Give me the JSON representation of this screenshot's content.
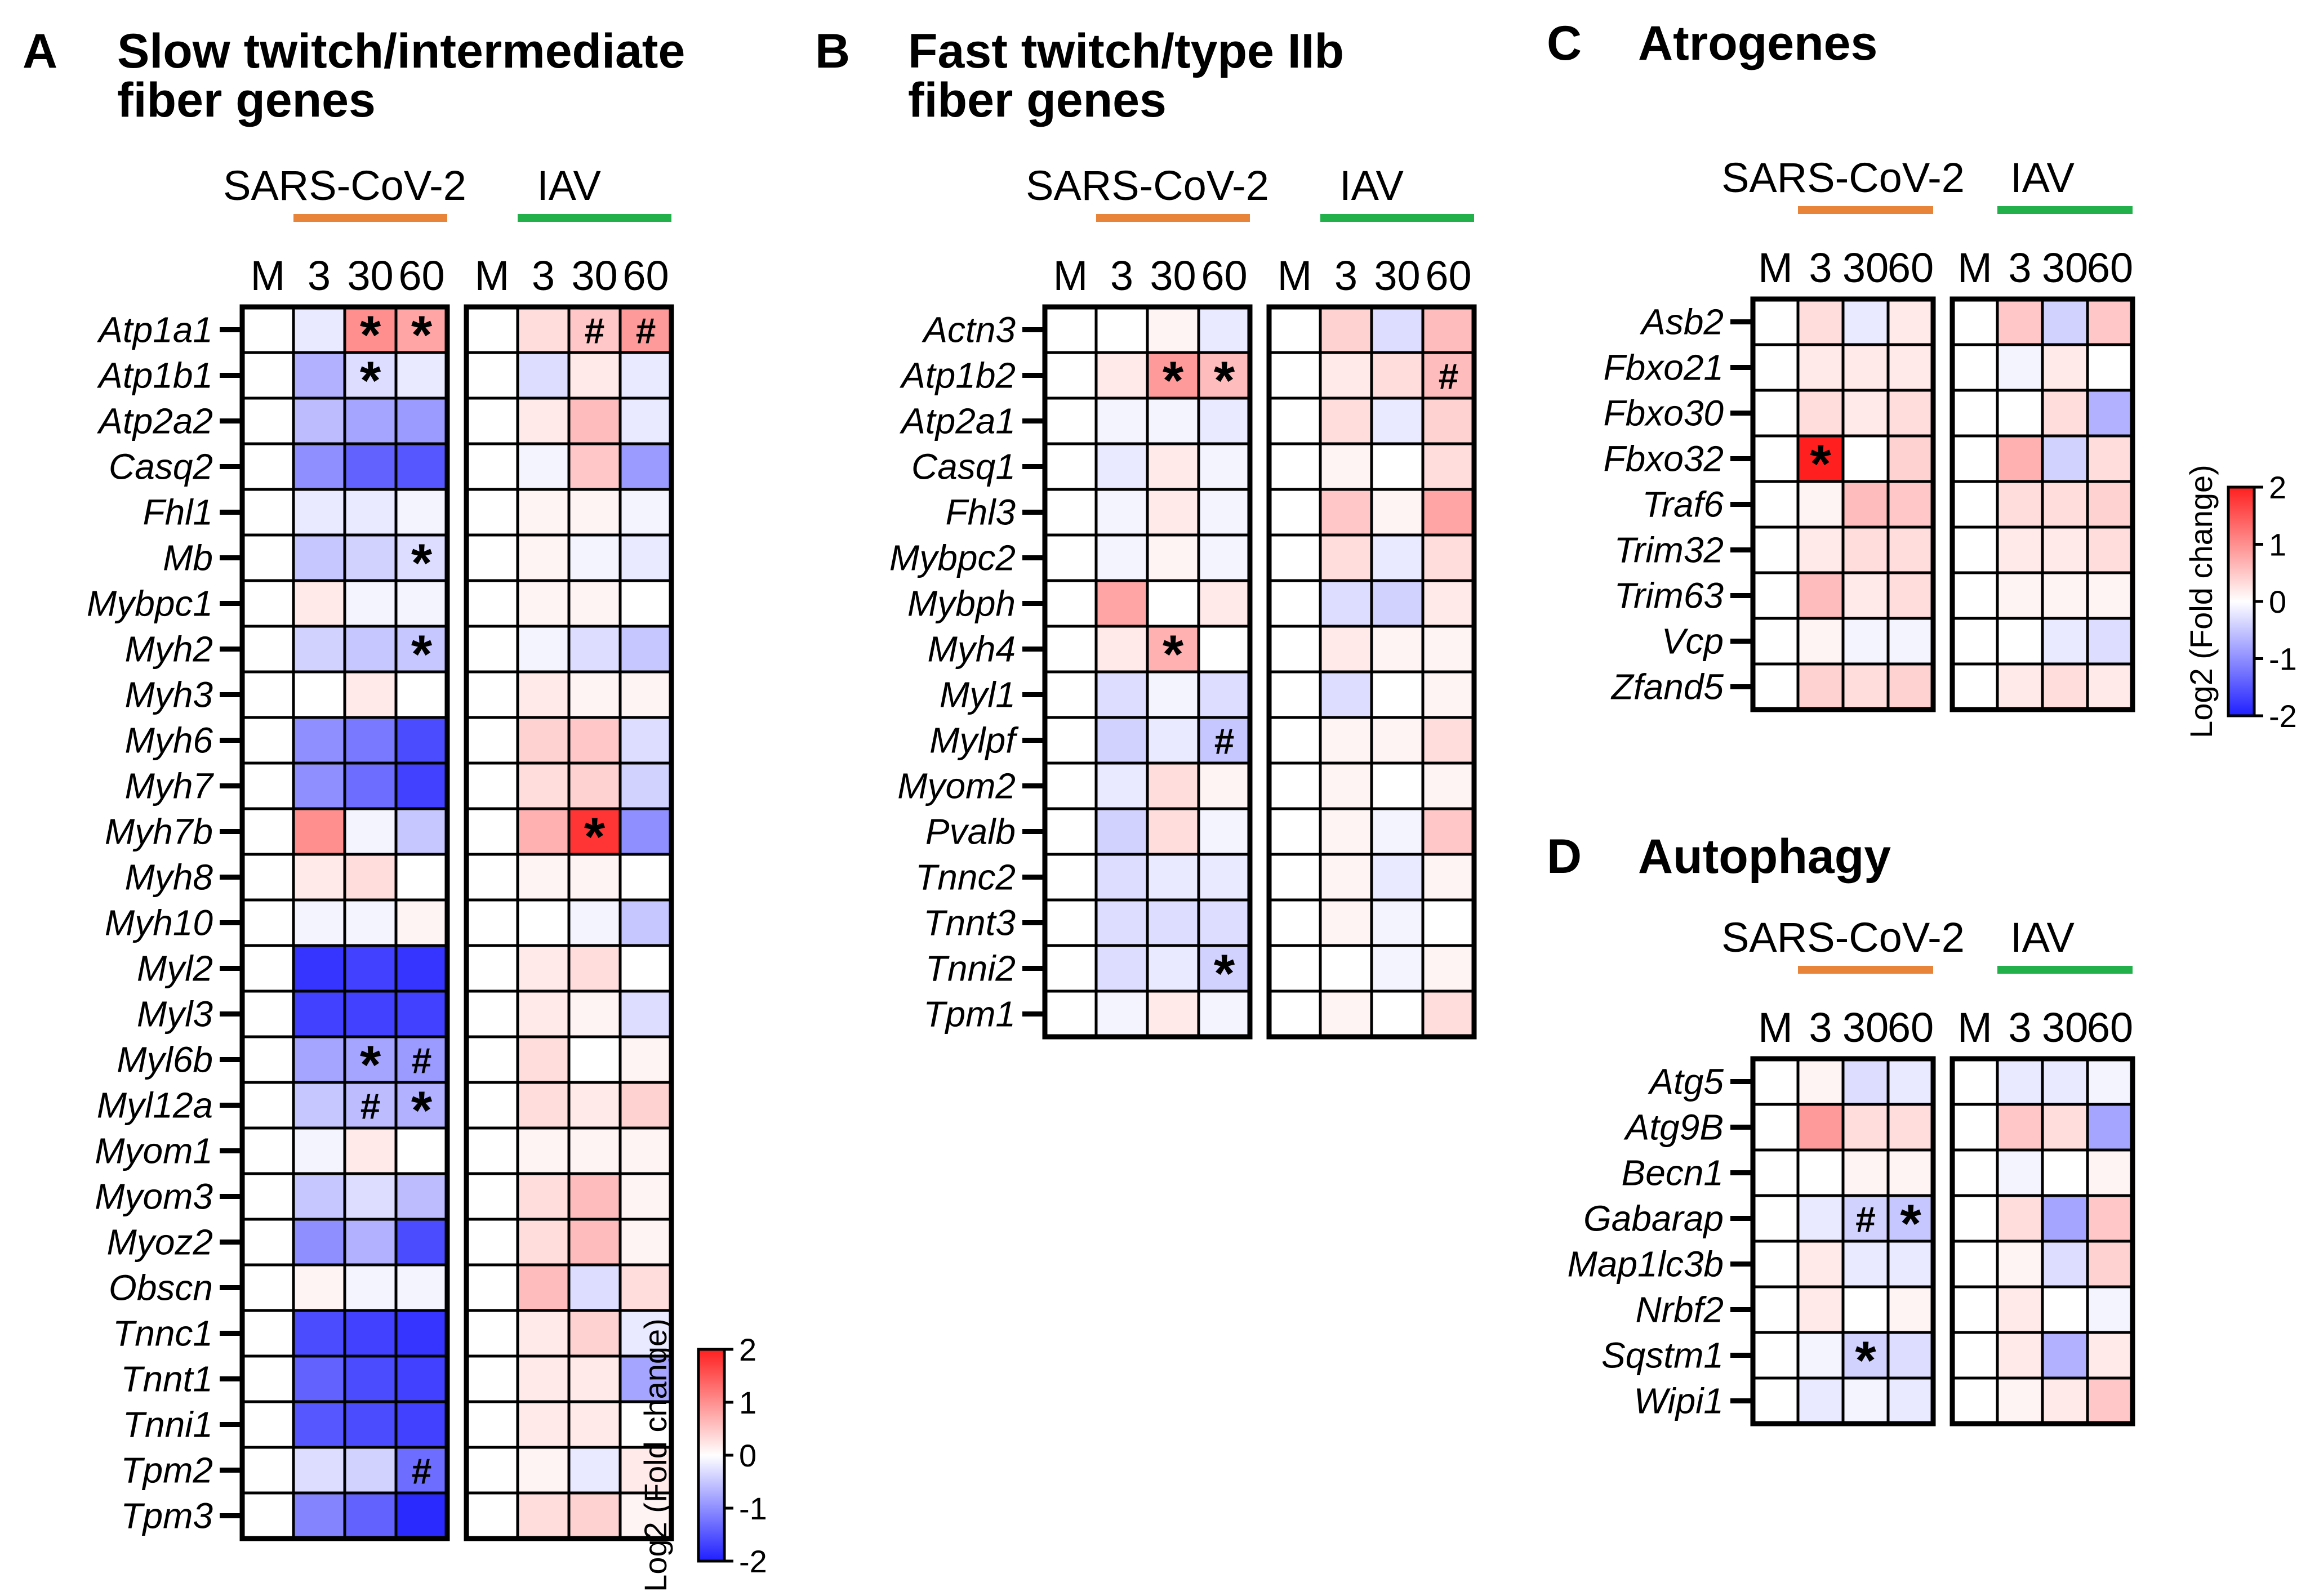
{
  "colors": {
    "negative": "#1f1fff",
    "neutral": "#ffffff",
    "positive": "#ff1f1f",
    "sars": "#e8843a",
    "iav": "#22b04b",
    "grid": "#000000"
  },
  "groups": [
    "SARS-CoV-2",
    "IAV"
  ],
  "columns": [
    "M",
    "3",
    "30",
    "60",
    "M",
    "3",
    "30",
    "60"
  ],
  "colorbar": {
    "title": "Log2 (Fold change)",
    "ticks": [
      "2",
      "1",
      "0",
      "-1",
      "-2"
    ],
    "range": [
      -2,
      2
    ]
  },
  "chart_data": [
    {
      "type": "heatmap",
      "letter": "A",
      "title": [
        "Slow twitch/intermediate",
        "fiber genes"
      ],
      "genes": [
        "Atp1a1",
        "Atp1b1",
        "Atp2a2",
        "Casq2",
        "Fhl1",
        "Mb",
        "Mybpc1",
        "Myh2",
        "Myh3",
        "Myh6",
        "Myh7",
        "Myh7b",
        "Myh8",
        "Myh10",
        "Myl2",
        "Myl3",
        "Myl6b",
        "Myl12a",
        "Myom1",
        "Myom3",
        "Myoz2",
        "Obscn",
        "Tnnc1",
        "Tnnt1",
        "Tnni1",
        "Tpm2",
        "Tpm3"
      ],
      "values": [
        [
          0,
          -0.2,
          1.0,
          0.8,
          0,
          0.3,
          0.5,
          0.9
        ],
        [
          0,
          -0.7,
          -0.3,
          -0.2,
          0,
          -0.3,
          0.2,
          -0.2
        ],
        [
          0,
          -0.6,
          -0.8,
          -0.9,
          0,
          0.2,
          0.6,
          -0.2
        ],
        [
          0,
          -1.0,
          -1.4,
          -1.5,
          0,
          -0.1,
          0.5,
          -0.9
        ],
        [
          0,
          -0.2,
          -0.2,
          -0.1,
          0,
          0.1,
          0.1,
          -0.1
        ],
        [
          0,
          -0.5,
          -0.4,
          -0.3,
          0,
          0.1,
          -0.1,
          -0.2
        ],
        [
          0,
          0.2,
          -0.1,
          -0.1,
          0,
          0.1,
          0.1,
          0.0
        ],
        [
          0,
          -0.4,
          -0.5,
          -0.5,
          0,
          -0.1,
          -0.3,
          -0.5
        ],
        [
          0,
          0.0,
          0.2,
          0.0,
          0,
          0.2,
          0.1,
          0.1
        ],
        [
          0,
          -1.0,
          -1.2,
          -1.6,
          0,
          0.4,
          0.5,
          -0.3
        ],
        [
          0,
          -1.0,
          -1.3,
          -1.7,
          0,
          0.3,
          0.4,
          -0.4
        ],
        [
          0,
          1.0,
          -0.1,
          -0.5,
          0,
          0.7,
          1.8,
          -1.0
        ],
        [
          0,
          0.2,
          0.3,
          0.0,
          0,
          0.1,
          0.1,
          0.0
        ],
        [
          0,
          -0.1,
          -0.1,
          0.1,
          0,
          0.0,
          -0.1,
          -0.5
        ],
        [
          0,
          -1.8,
          -1.7,
          -1.8,
          0,
          0.2,
          0.3,
          0.0
        ],
        [
          0,
          -1.7,
          -1.7,
          -1.7,
          0,
          0.2,
          0.1,
          -0.3
        ],
        [
          0,
          -0.8,
          -0.8,
          -0.9,
          0,
          0.3,
          0.0,
          0.1
        ],
        [
          0,
          -0.5,
          -0.6,
          -0.7,
          0,
          0.3,
          0.2,
          0.4
        ],
        [
          0,
          -0.1,
          0.2,
          0.0,
          0,
          0.1,
          0.1,
          0.1
        ],
        [
          0,
          -0.5,
          -0.3,
          -0.6,
          0,
          0.3,
          0.6,
          0.1
        ],
        [
          0,
          -1.0,
          -0.7,
          -1.6,
          0,
          0.3,
          0.6,
          0.1
        ],
        [
          0,
          0.1,
          -0.1,
          -0.1,
          0,
          0.6,
          -0.3,
          0.3
        ],
        [
          0,
          -1.6,
          -1.7,
          -1.8,
          0,
          0.2,
          0.4,
          -0.2
        ],
        [
          0,
          -1.4,
          -1.6,
          -1.7,
          0,
          0.2,
          0.2,
          -0.8
        ],
        [
          0,
          -1.5,
          -1.6,
          -1.7,
          0,
          0.2,
          0.2,
          0.0
        ],
        [
          0,
          -0.3,
          -0.4,
          -1.3,
          0,
          0.1,
          -0.2,
          0.2
        ],
        [
          0,
          -1.1,
          -1.4,
          -1.9,
          0,
          0.3,
          0.4,
          0.1
        ]
      ],
      "annotations": [
        {
          "gene": "Atp1a1",
          "col": 2,
          "mark": "*"
        },
        {
          "gene": "Atp1a1",
          "col": 3,
          "mark": "*"
        },
        {
          "gene": "Atp1a1",
          "col": 6,
          "mark": "#"
        },
        {
          "gene": "Atp1a1",
          "col": 7,
          "mark": "#"
        },
        {
          "gene": "Atp1b1",
          "col": 2,
          "mark": "*"
        },
        {
          "gene": "Mb",
          "col": 3,
          "mark": "*"
        },
        {
          "gene": "Myh2",
          "col": 3,
          "mark": "*"
        },
        {
          "gene": "Myh7b",
          "col": 6,
          "mark": "*"
        },
        {
          "gene": "Myl6b",
          "col": 2,
          "mark": "*"
        },
        {
          "gene": "Myl6b",
          "col": 3,
          "mark": "#"
        },
        {
          "gene": "Myl12a",
          "col": 2,
          "mark": "#"
        },
        {
          "gene": "Myl12a",
          "col": 3,
          "mark": "*"
        },
        {
          "gene": "Tpm2",
          "col": 3,
          "mark": "#"
        }
      ]
    },
    {
      "type": "heatmap",
      "letter": "B",
      "title": [
        "Fast twitch/type IIb",
        "fiber genes"
      ],
      "genes": [
        "Actn3",
        "Atp1b2",
        "Atp2a1",
        "Casq1",
        "Fhl3",
        "Mybpc2",
        "Mybph",
        "Myh4",
        "Myl1",
        "Mylpf",
        "Myom2",
        "Pvalb",
        "Tnnc2",
        "Tnnt3",
        "Tnni2",
        "Tpm1"
      ],
      "values": [
        [
          0,
          0.0,
          0.1,
          -0.2,
          0,
          0.4,
          -0.3,
          0.6
        ],
        [
          0,
          0.2,
          0.9,
          0.6,
          0,
          0.2,
          0.3,
          0.6
        ],
        [
          0,
          -0.1,
          -0.1,
          -0.2,
          0,
          0.3,
          -0.2,
          0.4
        ],
        [
          0,
          -0.2,
          0.2,
          -0.1,
          0,
          0.1,
          0.0,
          0.3
        ],
        [
          0,
          -0.1,
          0.2,
          -0.1,
          0,
          0.5,
          0.1,
          0.8
        ],
        [
          0,
          -0.1,
          0.1,
          -0.1,
          0,
          0.3,
          -0.2,
          0.3
        ],
        [
          0,
          0.8,
          0.0,
          0.2,
          0,
          -0.3,
          -0.4,
          0.2
        ],
        [
          0,
          0.2,
          0.7,
          0.0,
          0,
          0.2,
          0.1,
          0.1
        ],
        [
          0,
          -0.3,
          -0.1,
          -0.3,
          0,
          -0.3,
          0.0,
          0.1
        ],
        [
          0,
          -0.4,
          -0.2,
          -0.5,
          0,
          0.1,
          0.1,
          0.3
        ],
        [
          0,
          -0.2,
          0.3,
          0.1,
          0,
          0.1,
          0.0,
          0.1
        ],
        [
          0,
          -0.4,
          0.3,
          -0.1,
          0,
          0.1,
          -0.1,
          0.5
        ],
        [
          0,
          -0.3,
          -0.2,
          -0.2,
          0,
          0.1,
          -0.2,
          0.1
        ],
        [
          0,
          -0.3,
          -0.3,
          -0.3,
          0,
          0.1,
          -0.1,
          0.0
        ],
        [
          0,
          -0.3,
          -0.2,
          -0.4,
          0,
          0.0,
          -0.1,
          0.1
        ],
        [
          0,
          -0.1,
          0.2,
          -0.1,
          0,
          0.1,
          0.0,
          0.3
        ]
      ],
      "annotations": [
        {
          "gene": "Atp1b2",
          "col": 2,
          "mark": "*"
        },
        {
          "gene": "Atp1b2",
          "col": 3,
          "mark": "*"
        },
        {
          "gene": "Atp1b2",
          "col": 7,
          "mark": "#"
        },
        {
          "gene": "Myh4",
          "col": 2,
          "mark": "*"
        },
        {
          "gene": "Mylpf",
          "col": 3,
          "mark": "#"
        },
        {
          "gene": "Tnni2",
          "col": 3,
          "mark": "*"
        }
      ]
    },
    {
      "type": "heatmap",
      "letter": "C",
      "title": [
        "Atrogenes"
      ],
      "genes": [
        "Asb2",
        "Fbxo21",
        "Fbxo30",
        "Fbxo32",
        "Traf6",
        "Trim32",
        "Trim63",
        "Vcp",
        "Zfand5"
      ],
      "values": [
        [
          0,
          0.3,
          -0.2,
          0.2,
          0,
          0.5,
          -0.4,
          0.5
        ],
        [
          0,
          0.2,
          0.2,
          0.2,
          0,
          -0.1,
          0.2,
          0.0
        ],
        [
          0,
          0.3,
          0.2,
          0.3,
          0,
          0.0,
          0.3,
          -0.7
        ],
        [
          0,
          2.0,
          0.0,
          0.4,
          0,
          0.7,
          -0.4,
          0.3
        ],
        [
          0,
          0.1,
          0.6,
          0.5,
          0,
          0.3,
          0.3,
          0.4
        ],
        [
          0,
          0.2,
          0.3,
          0.3,
          0,
          0.2,
          0.2,
          0.3
        ],
        [
          0,
          0.6,
          0.2,
          0.3,
          0,
          0.1,
          0.1,
          0.1
        ],
        [
          0,
          0.1,
          -0.1,
          -0.1,
          0,
          0.0,
          -0.2,
          -0.3
        ],
        [
          0,
          0.4,
          0.3,
          0.4,
          0,
          0.2,
          0.3,
          0.2
        ]
      ],
      "annotations": [
        {
          "gene": "Fbxo32",
          "col": 1,
          "mark": "*"
        }
      ]
    },
    {
      "type": "heatmap",
      "letter": "D",
      "title": [
        "Autophagy"
      ],
      "genes": [
        "Atg5",
        "Atg9B",
        "Becn1",
        "Gabarap",
        "Map1lc3b",
        "Nrbf2",
        "Sqstm1",
        "Wipi1"
      ],
      "values": [
        [
          0,
          0.1,
          -0.3,
          -0.2,
          0,
          -0.2,
          -0.2,
          -0.1
        ],
        [
          0,
          0.9,
          0.3,
          0.3,
          0,
          0.5,
          0.3,
          -0.8
        ],
        [
          0,
          0.0,
          0.1,
          0.1,
          0,
          -0.1,
          0.0,
          0.1
        ],
        [
          0,
          -0.2,
          -0.4,
          -0.5,
          0,
          0.3,
          -0.8,
          0.5
        ],
        [
          0,
          0.2,
          -0.2,
          -0.2,
          0,
          0.1,
          -0.3,
          0.4
        ],
        [
          0,
          0.2,
          0.0,
          0.1,
          0,
          0.2,
          0.0,
          -0.1
        ],
        [
          0,
          -0.1,
          -0.4,
          -0.3,
          0,
          0.2,
          -0.7,
          0.2
        ],
        [
          0,
          -0.2,
          -0.1,
          -0.2,
          0,
          0.1,
          0.2,
          0.5
        ]
      ],
      "annotations": [
        {
          "gene": "Gabarap",
          "col": 2,
          "mark": "#"
        },
        {
          "gene": "Gabarap",
          "col": 3,
          "mark": "*"
        },
        {
          "gene": "Sqstm1",
          "col": 2,
          "mark": "*"
        }
      ]
    }
  ]
}
